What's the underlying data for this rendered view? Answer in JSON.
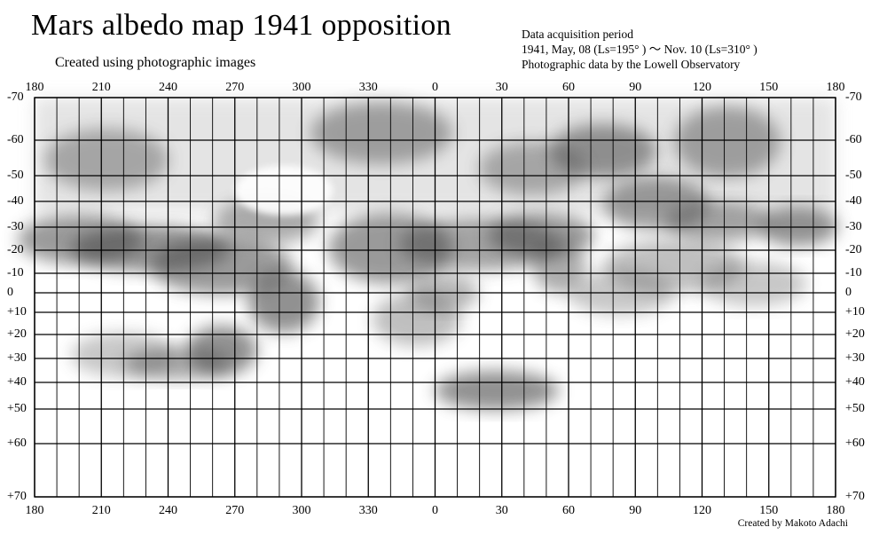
{
  "title": "Mars albedo map 1941 opposition",
  "subtitle": "Created using photographic images",
  "info": {
    "line1": "Data acquisition period",
    "line2": "1941, May, 08 (Ls=195° ) ～  Nov. 10 (Ls=310° )",
    "line3": "Photographic data by the Lowell Observatory"
  },
  "credit": "Created by Makoto Adachi",
  "longitude_labels": [
    "180",
    "210",
    "240",
    "270",
    "300",
    "330",
    "0",
    "30",
    "60",
    "90",
    "120",
    "150",
    "180"
  ],
  "latitude_labels": [
    "-70",
    "-60",
    "-50",
    "-40",
    "-30",
    "-20",
    "-10",
    "0",
    "+10",
    "+20",
    "+30",
    "+40",
    "+50",
    "+60",
    "+70"
  ],
  "colors": {
    "ink": "#000000",
    "shading": "#4a4a4a",
    "paper": "#ffffff"
  }
}
